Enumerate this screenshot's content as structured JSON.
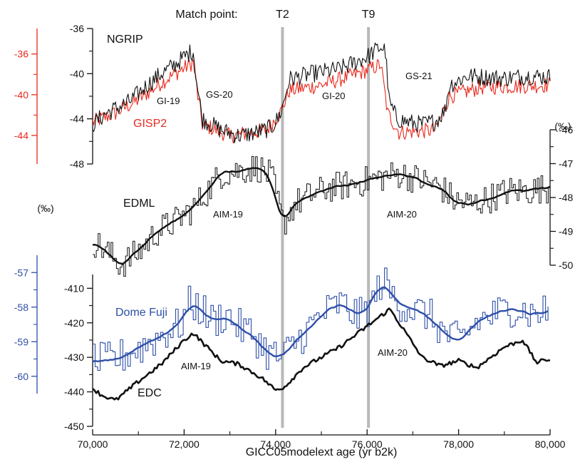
{
  "colors": {
    "ngrip": "#111111",
    "gisp2": "#e8291c",
    "edml": "#111111",
    "dome_fuji": "#2e4fa8",
    "edc": "#111111",
    "match_line": "#b8b8b8",
    "axis": "#111111"
  },
  "chart_data": {
    "type": "line",
    "xlabel": "GICC05modelext age (yr b2k)",
    "xlim": [
      70000,
      80000
    ],
    "x_ticks": [
      "70,000",
      "72,000",
      "74,000",
      "76,000",
      "78,000",
      "80,000"
    ],
    "match_label": "Match point:",
    "match_points": [
      {
        "label": "T2",
        "x": 74150
      },
      {
        "label": "T9",
        "x": 76030
      }
    ],
    "panels": {
      "greenland": {
        "series_labels": {
          "ngrip": "NGRIP",
          "gisp2": "GISP2"
        },
        "ngrip_axis": {
          "ticks": [
            "-36",
            "-40",
            "-44",
            "-48"
          ],
          "lim": [
            -48,
            -36
          ]
        },
        "gisp2_axis": {
          "ticks": [
            "-36",
            "-40",
            "-44"
          ],
          "lim": [
            -46,
            -34
          ]
        },
        "events": [
          "GI-19",
          "GS-20",
          "GI-20",
          "GS-21"
        ],
        "ngrip_anchors": [
          [
            70000,
            -44.5
          ],
          [
            70300,
            -43.5
          ],
          [
            70800,
            -42.5
          ],
          [
            71200,
            -41.0
          ],
          [
            71500,
            -40.0
          ],
          [
            71800,
            -39.2
          ],
          [
            72100,
            -38.2
          ],
          [
            72200,
            -38.0
          ],
          [
            72300,
            -41.5
          ],
          [
            72400,
            -44.0
          ],
          [
            72800,
            -45.0
          ],
          [
            73200,
            -45.5
          ],
          [
            73600,
            -45.2
          ],
          [
            73900,
            -44.8
          ],
          [
            74050,
            -44.0
          ],
          [
            74150,
            -43.0
          ],
          [
            74300,
            -40.5
          ],
          [
            74800,
            -40.0
          ],
          [
            75400,
            -39.6
          ],
          [
            76000,
            -38.5
          ],
          [
            76300,
            -37.6
          ],
          [
            76400,
            -38.0
          ],
          [
            76480,
            -42.5
          ],
          [
            76650,
            -44.0
          ],
          [
            76900,
            -44.3
          ],
          [
            77200,
            -44.5
          ],
          [
            77500,
            -44.2
          ],
          [
            77700,
            -43.3
          ],
          [
            77800,
            -41.0
          ],
          [
            78200,
            -40.2
          ],
          [
            79000,
            -40.4
          ],
          [
            79500,
            -40.2
          ],
          [
            80000,
            -40.3
          ]
        ],
        "gisp2_anchors": [
          [
            70000,
            -44.3
          ],
          [
            70500,
            -43.5
          ],
          [
            71000,
            -42.3
          ],
          [
            71500,
            -40.8
          ],
          [
            72000,
            -39.5
          ],
          [
            72200,
            -39.0
          ],
          [
            72300,
            -42.0
          ],
          [
            72400,
            -44.5
          ],
          [
            73000,
            -45.5
          ],
          [
            73800,
            -45.0
          ],
          [
            74100,
            -43.5
          ],
          [
            74300,
            -41.5
          ],
          [
            75000,
            -41.0
          ],
          [
            75800,
            -40.0
          ],
          [
            76300,
            -39.2
          ],
          [
            76450,
            -43.5
          ],
          [
            76700,
            -45.2
          ],
          [
            77500,
            -45.0
          ],
          [
            77800,
            -42.0
          ],
          [
            78500,
            -41.2
          ],
          [
            80000,
            -41.0
          ]
        ]
      },
      "edml": {
        "label": "EDML",
        "event": "AIM-19",
        "event2": "AIM-20",
        "unit": "(‰)",
        "axis": {
          "ticks": [
            "-46",
            "-47",
            "-48",
            "-49",
            "-50"
          ],
          "lim": [
            -50,
            -46
          ]
        },
        "anchors": [
          [
            70000,
            -49.3
          ],
          [
            70300,
            -49.6
          ],
          [
            70600,
            -50.0
          ],
          [
            71000,
            -49.6
          ],
          [
            71400,
            -49.0
          ],
          [
            71800,
            -48.7
          ],
          [
            72200,
            -48.3
          ],
          [
            72500,
            -47.8
          ],
          [
            72800,
            -47.3
          ],
          [
            73200,
            -47.2
          ],
          [
            73600,
            -47.1
          ],
          [
            73900,
            -47.4
          ],
          [
            74150,
            -48.8
          ],
          [
            74400,
            -48.2
          ],
          [
            74800,
            -47.9
          ],
          [
            75200,
            -47.7
          ],
          [
            75700,
            -47.6
          ],
          [
            76000,
            -47.5
          ],
          [
            76300,
            -47.4
          ],
          [
            76700,
            -47.3
          ],
          [
            77200,
            -47.5
          ],
          [
            77600,
            -47.7
          ],
          [
            77900,
            -48.1
          ],
          [
            78300,
            -48.2
          ],
          [
            78700,
            -48.0
          ],
          [
            79100,
            -47.8
          ],
          [
            79500,
            -47.8
          ],
          [
            80000,
            -47.7
          ]
        ]
      },
      "dome_fuji": {
        "label": "Dome Fuji",
        "unit": "(‰)",
        "axis": {
          "ticks": [
            "-57",
            "-58",
            "-59",
            "-60"
          ],
          "lim": [
            -60.5,
            -56.5
          ]
        },
        "anchors": [
          [
            70000,
            -59.6
          ],
          [
            70500,
            -59.5
          ],
          [
            71000,
            -59.2
          ],
          [
            71500,
            -58.8
          ],
          [
            71900,
            -58.5
          ],
          [
            72100,
            -57.9
          ],
          [
            72300,
            -58.0
          ],
          [
            72600,
            -58.4
          ],
          [
            72900,
            -58.2
          ],
          [
            73200,
            -58.6
          ],
          [
            73500,
            -58.8
          ],
          [
            73800,
            -59.3
          ],
          [
            74100,
            -59.5
          ],
          [
            74500,
            -58.9
          ],
          [
            75000,
            -58.2
          ],
          [
            75400,
            -57.9
          ],
          [
            75800,
            -58.3
          ],
          [
            76100,
            -57.9
          ],
          [
            76300,
            -57.2
          ],
          [
            76600,
            -57.8
          ],
          [
            77000,
            -58.1
          ],
          [
            77300,
            -58.2
          ],
          [
            77700,
            -58.8
          ],
          [
            78000,
            -59.0
          ],
          [
            78400,
            -58.4
          ],
          [
            78800,
            -58.2
          ],
          [
            79200,
            -58.0
          ],
          [
            79600,
            -58.2
          ],
          [
            80000,
            -58.1
          ]
        ]
      },
      "edc": {
        "label": "EDC",
        "event": "AIM-19",
        "event2": "AIM-20",
        "axis": {
          "ticks": [
            "-410",
            "-420",
            "-430",
            "-440",
            "-450"
          ],
          "lim": [
            -450,
            -406
          ]
        },
        "anchors": [
          [
            70000,
            -439
          ],
          [
            70200,
            -441
          ],
          [
            70500,
            -442.5
          ],
          [
            71000,
            -437
          ],
          [
            71500,
            -432
          ],
          [
            72000,
            -425
          ],
          [
            72200,
            -423
          ],
          [
            72500,
            -427
          ],
          [
            72800,
            -431
          ],
          [
            73200,
            -432
          ],
          [
            73700,
            -436
          ],
          [
            74000,
            -439.5
          ],
          [
            74200,
            -438.5
          ],
          [
            74600,
            -433
          ],
          [
            75000,
            -430
          ],
          [
            75400,
            -427
          ],
          [
            75800,
            -423
          ],
          [
            76200,
            -419
          ],
          [
            76500,
            -416
          ],
          [
            76800,
            -422
          ],
          [
            77200,
            -430
          ],
          [
            77600,
            -432.5
          ],
          [
            78000,
            -431
          ],
          [
            78400,
            -433
          ],
          [
            79000,
            -427
          ],
          [
            79400,
            -425
          ],
          [
            79700,
            -431.5
          ],
          [
            80000,
            -430.5
          ]
        ]
      }
    }
  }
}
